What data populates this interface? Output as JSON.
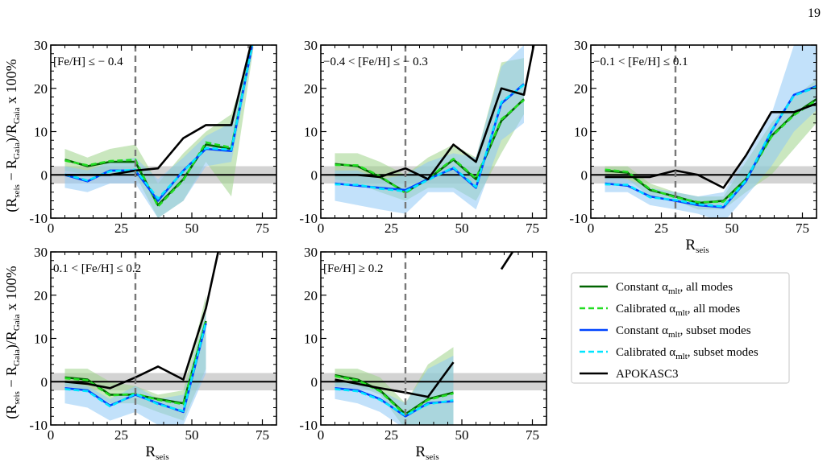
{
  "page_number": "19",
  "colors": {
    "constant_all": "#006400",
    "calibrated_all": "#22dd22",
    "constant_subset": "#0044ff",
    "calibrated_subset": "#00e5ff",
    "apokasc3": "#000000",
    "band_green": "#9fd38a",
    "band_blue": "#8fc8f5",
    "band_overlap": "#5fb3a8",
    "zero_band": "#d3d3d3",
    "vline": "#777777"
  },
  "legend": {
    "items": [
      {
        "pre": "Constant α",
        "sub": "mlt",
        "post": ",  all modes",
        "color_key": "constant_all",
        "dash": "solid"
      },
      {
        "pre": "Calibrated α",
        "sub": "mlt",
        "post": ",  all modes",
        "color_key": "calibrated_all",
        "dash": "dashed"
      },
      {
        "pre": "Constant α",
        "sub": "mlt",
        "post": ",  subset modes",
        "color_key": "constant_subset",
        "dash": "solid"
      },
      {
        "pre": "Calibrated α",
        "sub": "mlt",
        "post": ",  subset modes",
        "color_key": "calibrated_subset",
        "dash": "dashed"
      },
      {
        "pre": "APOKASC3",
        "sub": "",
        "post": "",
        "color_key": "apokasc3",
        "dash": "solid"
      }
    ]
  },
  "ylabel": {
    "pre": "(R",
    "s1": "seis",
    "mid": " − R",
    "s2": "Gaia",
    "mid2": ")/R",
    "s3": "Gaia",
    "post": " x 100%"
  },
  "xlabel": {
    "main": "R",
    "sub": "seis"
  },
  "chart_data": [
    {
      "type": "line",
      "panel_label": "[Fe/H] ≤ − 0.4",
      "xlim": [
        0,
        80
      ],
      "ylim": [
        -10,
        30
      ],
      "xticks": [
        0,
        25,
        50,
        75
      ],
      "yticks": [
        -10,
        0,
        10,
        20,
        30
      ],
      "vline_x": 30,
      "zero_band": [
        -2,
        2
      ],
      "show_xlabel": false,
      "show_ylabel": true,
      "x": [
        5,
        13,
        21,
        30,
        38,
        47,
        55,
        64,
        72
      ],
      "band_all": {
        "lower": [
          1,
          0,
          0,
          0,
          -10,
          -6,
          3,
          -5,
          30
        ],
        "upper": [
          6,
          4,
          6,
          7,
          -2,
          5,
          10,
          14,
          30
        ]
      },
      "band_subset": {
        "lower": [
          -3,
          -4,
          -2,
          -2,
          -10,
          -6,
          2,
          3,
          30
        ],
        "upper": [
          2,
          1,
          3,
          4,
          -1,
          4,
          9,
          12,
          30
        ]
      },
      "series": [
        {
          "name": "Constant αmlt, all modes",
          "values": [
            3.5,
            2,
            3,
            3,
            -7,
            -1,
            7,
            6,
            32
          ]
        },
        {
          "name": "Calibrated αmlt, all modes",
          "values": [
            3.3,
            2.2,
            3.2,
            3.5,
            -7.3,
            -1.2,
            7.5,
            6.3,
            32
          ]
        },
        {
          "name": "Constant αmlt, subset modes",
          "values": [
            0,
            -1.5,
            1,
            1,
            -6,
            1,
            6,
            5.5,
            32
          ]
        },
        {
          "name": "Calibrated αmlt, subset modes",
          "values": [
            0.1,
            -1.3,
            0.8,
            1.2,
            -5.5,
            0.8,
            6.2,
            5.8,
            32
          ]
        },
        {
          "name": "APOKASC3",
          "x": [
            5,
            13,
            21,
            30,
            38,
            47,
            55,
            64,
            72
          ],
          "values": [
            0,
            0,
            0,
            1,
            1.5,
            8.5,
            11.5,
            11.5,
            33
          ]
        }
      ]
    },
    {
      "type": "line",
      "panel_label": "−0.4 < [Fe/H] ≤ − 0.3",
      "xlim": [
        0,
        80
      ],
      "ylim": [
        -10,
        30
      ],
      "xticks": [
        0,
        25,
        50,
        75
      ],
      "yticks": [
        -10,
        0,
        10,
        20,
        30
      ],
      "vline_x": 30,
      "zero_band": [
        -2,
        2
      ],
      "show_xlabel": false,
      "show_ylabel": false,
      "x": [
        5,
        13,
        21,
        30,
        38,
        47,
        55,
        64,
        72
      ],
      "band_all": {
        "lower": [
          -1,
          -2,
          -4,
          -6,
          -3,
          -3,
          -6,
          5,
          14
        ],
        "upper": [
          5,
          5,
          3,
          0,
          4,
          7,
          4,
          26,
          27
        ]
      },
      "band_subset": {
        "lower": [
          -6,
          -7,
          -8,
          -9,
          -4,
          -4,
          -8,
          8,
          12
        ],
        "upper": [
          1,
          1,
          -1,
          0,
          3,
          5,
          4,
          25,
          30
        ]
      },
      "series": [
        {
          "name": "Constant αmlt, all modes",
          "values": [
            2.5,
            2,
            -0.5,
            -4,
            -1,
            3.5,
            -1,
            12.5,
            17.5
          ]
        },
        {
          "name": "Calibrated αmlt, all modes",
          "values": [
            2.3,
            2.2,
            -0.3,
            -4.2,
            -0.8,
            3.7,
            -0.8,
            12.8,
            17.3
          ]
        },
        {
          "name": "Constant αmlt, subset modes",
          "values": [
            -2,
            -2.5,
            -3,
            -3.5,
            -1,
            1.5,
            -3,
            16.5,
            21
          ]
        },
        {
          "name": "Calibrated αmlt, subset modes",
          "values": [
            -2.2,
            -2.3,
            -3.2,
            -3.8,
            -1.2,
            1.7,
            -2.8,
            16.8,
            20.8
          ]
        },
        {
          "name": "APOKASC3",
          "x": [
            5,
            13,
            21,
            30,
            38,
            47,
            55,
            64,
            72,
            77
          ],
          "values": [
            0,
            0,
            -0.5,
            1.5,
            -1,
            7,
            3,
            20,
            18.5,
            35
          ]
        }
      ]
    },
    {
      "type": "line",
      "panel_label": "−0.1 < [Fe/H] ≤ 0.1",
      "xlim": [
        0,
        80
      ],
      "ylim": [
        -10,
        30
      ],
      "xticks": [
        0,
        25,
        50,
        75
      ],
      "yticks": [
        -10,
        0,
        10,
        20,
        30
      ],
      "vline_x": 30,
      "zero_band": [
        -2,
        2
      ],
      "show_xlabel": true,
      "show_ylabel": false,
      "x": [
        5,
        13,
        21,
        30,
        38,
        47,
        55,
        64,
        72,
        80
      ],
      "band_all": {
        "lower": [
          -1,
          -1,
          -5,
          -6,
          -8,
          -8,
          -4,
          0,
          6,
          12
        ],
        "upper": [
          2,
          2,
          -2,
          -4,
          -5,
          -5,
          3,
          12,
          18,
          22
        ]
      },
      "band_subset": {
        "lower": [
          -4,
          -4,
          -7,
          -8,
          -9,
          -11,
          -5,
          2,
          10,
          15
        ],
        "upper": [
          0,
          -1,
          -3,
          -4,
          -5,
          -4,
          4,
          14,
          30,
          30
        ]
      },
      "series": [
        {
          "name": "Constant αmlt, all modes",
          "values": [
            1,
            0.5,
            -3.5,
            -5,
            -6.5,
            -6,
            -1,
            9,
            14,
            17.5
          ]
        },
        {
          "name": "Calibrated αmlt, all modes",
          "values": [
            1.2,
            0.7,
            -3.3,
            -5.2,
            -6.3,
            -6.2,
            -1.2,
            8.8,
            13.8,
            17.3
          ]
        },
        {
          "name": "Constant αmlt, subset modes",
          "values": [
            -2,
            -2.5,
            -5,
            -6,
            -7,
            -7.5,
            -1.5,
            10,
            18.5,
            20.5
          ]
        },
        {
          "name": "Calibrated αmlt, subset modes",
          "values": [
            -2.2,
            -2.3,
            -5.2,
            -5.8,
            -6.8,
            -7.3,
            -1.3,
            10.2,
            18.3,
            20.3
          ]
        },
        {
          "name": "APOKASC3",
          "x": [
            5,
            13,
            21,
            30,
            38,
            47,
            55,
            64,
            72,
            80
          ],
          "values": [
            -0.5,
            -0.5,
            -0.5,
            1,
            0,
            -3,
            4.5,
            14.5,
            14.5,
            16.5
          ]
        }
      ]
    },
    {
      "type": "line",
      "panel_label": "0.1 < [Fe/H] ≤ 0.2",
      "xlim": [
        0,
        80
      ],
      "ylim": [
        -10,
        30
      ],
      "xticks": [
        0,
        25,
        50,
        75
      ],
      "yticks": [
        -10,
        0,
        10,
        20,
        30
      ],
      "vline_x": 30,
      "zero_band": [
        -2,
        2
      ],
      "show_xlabel": true,
      "show_ylabel": true,
      "x": [
        5,
        13,
        21,
        30,
        38,
        47,
        55
      ],
      "band_all": {
        "lower": [
          -1,
          -2,
          -5,
          -5,
          -7,
          -9,
          3
        ],
        "upper": [
          3,
          3,
          0,
          -1,
          -3,
          -2,
          20
        ]
      },
      "band_subset": {
        "lower": [
          -5,
          -6,
          -9,
          -7,
          -10,
          -10,
          2
        ],
        "upper": [
          0,
          -1,
          -4,
          -1,
          -4,
          -3,
          16
        ]
      },
      "series": [
        {
          "name": "Constant αmlt, all modes",
          "values": [
            1,
            0.5,
            -3,
            -3,
            -4,
            -5,
            14
          ]
        },
        {
          "name": "Calibrated αmlt, all modes",
          "values": [
            0.8,
            0.3,
            -3.2,
            -2.8,
            -4.2,
            -5.2,
            14.3
          ]
        },
        {
          "name": "Constant αmlt, subset modes",
          "values": [
            -1.5,
            -2,
            -5.5,
            -3,
            -5,
            -7,
            13.5
          ]
        },
        {
          "name": "Calibrated αmlt, subset modes",
          "values": [
            -1.7,
            -2.2,
            -5.7,
            -2.8,
            -5.2,
            -6.8,
            13.8
          ]
        },
        {
          "name": "APOKASC3",
          "x": [
            5,
            13,
            21,
            30,
            38,
            47,
            55,
            60
          ],
          "values": [
            0,
            -0.5,
            -1.5,
            1,
            3.5,
            0.5,
            17,
            32
          ]
        }
      ]
    },
    {
      "type": "line",
      "panel_label": "[Fe/H] ≥ 0.2",
      "xlim": [
        0,
        80
      ],
      "ylim": [
        -10,
        30
      ],
      "xticks": [
        0,
        25,
        50,
        75
      ],
      "yticks": [
        -10,
        0,
        10,
        20,
        30
      ],
      "vline_x": 30,
      "zero_band": [
        -2,
        2
      ],
      "show_xlabel": true,
      "show_ylabel": false,
      "x": [
        5,
        13,
        21,
        30,
        38,
        47
      ],
      "band_all": {
        "lower": [
          -1,
          -1,
          -3,
          -11,
          -11,
          -11
        ],
        "upper": [
          3,
          3,
          1,
          -5,
          4,
          8
        ]
      },
      "band_subset": {
        "lower": [
          -4,
          -5,
          -7,
          -11,
          -11,
          -11
        ],
        "upper": [
          0,
          0,
          -2,
          -5,
          3,
          6
        ]
      },
      "series": [
        {
          "name": "Constant αmlt, all modes",
          "values": [
            1.5,
            0.5,
            -2,
            -7.5,
            -4,
            -2.5
          ]
        },
        {
          "name": "Calibrated αmlt, all modes",
          "values": [
            1.3,
            0.3,
            -2.2,
            -7.7,
            -4.2,
            -2.7
          ]
        },
        {
          "name": "Constant αmlt, subset modes",
          "values": [
            -1.5,
            -2,
            -4,
            -8,
            -5,
            -4.5
          ]
        },
        {
          "name": "Calibrated αmlt, subset modes",
          "values": [
            -1.7,
            -2.2,
            -4.2,
            -7.8,
            -5.2,
            -4.3
          ]
        },
        {
          "name": "APOKASC3",
          "x": [
            5,
            13,
            21,
            30,
            38,
            47
          ],
          "values": [
            0.5,
            -0.5,
            -1.5,
            -2.5,
            -3.5,
            4.5
          ]
        },
        {
          "name": "APOKASC3 (upper segment)",
          "x": [
            64,
            69
          ],
          "values": [
            26,
            31
          ]
        }
      ]
    }
  ]
}
